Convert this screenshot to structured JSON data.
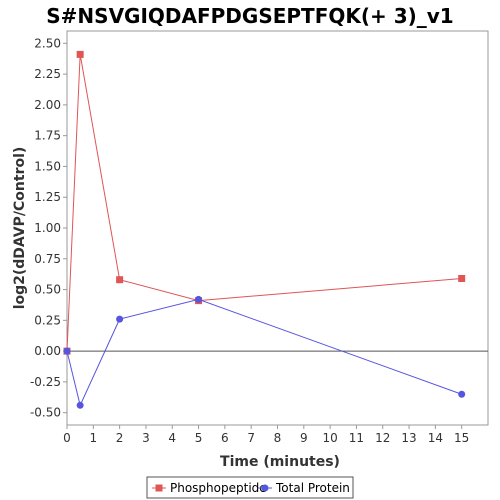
{
  "chart_data": {
    "type": "line",
    "title": "S#NSVGIQDAFPDGSEPTFQK(+ 3)_v1",
    "xlabel": "Time (minutes)",
    "ylabel": "log2(dDAVP/Control)",
    "xlim": [
      0,
      16
    ],
    "ylim": [
      -0.6,
      2.6
    ],
    "xticks": [
      0,
      1,
      2,
      3,
      4,
      5,
      6,
      7,
      8,
      9,
      10,
      11,
      12,
      13,
      14,
      15
    ],
    "yticks": [
      -0.5,
      -0.25,
      0,
      0.25,
      0.5,
      0.75,
      1,
      1.25,
      1.5,
      1.75,
      2,
      2.25,
      2.5
    ],
    "xtick_labels": [
      "0",
      "1",
      "2",
      "3",
      "4",
      "5",
      "6",
      "7",
      "8",
      "9",
      "10",
      "11",
      "12",
      "13",
      "14",
      "15"
    ],
    "ytick_labels": [
      "-0.50",
      "-0.25",
      "0.00",
      "0.25",
      "0.50",
      "0.75",
      "1.00",
      "1.25",
      "1.50",
      "1.75",
      "2.00",
      "2.25",
      "2.50"
    ],
    "zero_line": true,
    "grid": false,
    "legend_position": "bottom-center",
    "series": [
      {
        "name": "Phosphopeptide",
        "color": "#e05555",
        "marker": "square",
        "x": [
          0,
          0.5,
          2,
          5,
          15
        ],
        "y": [
          0.0,
          2.41,
          0.58,
          0.41,
          0.59
        ]
      },
      {
        "name": "Total Protein",
        "color": "#5555e0",
        "marker": "circle",
        "x": [
          0,
          0.5,
          2,
          5,
          15
        ],
        "y": [
          0.0,
          -0.44,
          0.26,
          0.42,
          -0.35
        ]
      }
    ]
  }
}
